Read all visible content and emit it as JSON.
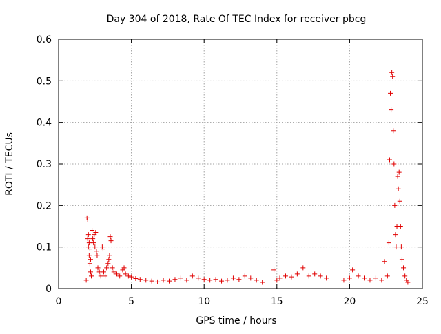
{
  "chart_data": {
    "type": "scatter",
    "title": "Day 304 of 2018, Rate Of TEC Index for receiver pbcg",
    "xlabel": "GPS time / hours",
    "ylabel": "ROTI / TECUs",
    "xlim": [
      0,
      25
    ],
    "ylim": [
      0,
      0.6
    ],
    "x_ticks": [
      0,
      5,
      10,
      15,
      20,
      25
    ],
    "y_ticks": [
      0,
      0.1,
      0.2,
      0.3,
      0.4,
      0.5,
      0.6
    ],
    "x_tick_labels": [
      "0",
      "5",
      "10",
      "15",
      "20",
      "25"
    ],
    "y_tick_labels": [
      "0",
      "0.1",
      "0.2",
      "0.3",
      "0.4",
      "0.5",
      "0.6"
    ],
    "grid": true,
    "marker": "+",
    "color": "#e00000",
    "series": [
      {
        "name": "",
        "points": [
          [
            1.9,
            0.02
          ],
          [
            1.95,
            0.17
          ],
          [
            2.0,
            0.165
          ],
          [
            2.0,
            0.12
          ],
          [
            2.05,
            0.13
          ],
          [
            2.05,
            0.1
          ],
          [
            2.1,
            0.11
          ],
          [
            2.1,
            0.08
          ],
          [
            2.15,
            0.095
          ],
          [
            2.15,
            0.06
          ],
          [
            2.2,
            0.07
          ],
          [
            2.2,
            0.04
          ],
          [
            2.25,
            0.03
          ],
          [
            2.3,
            0.14
          ],
          [
            2.35,
            0.12
          ],
          [
            2.4,
            0.11
          ],
          [
            2.45,
            0.13
          ],
          [
            2.5,
            0.1
          ],
          [
            2.55,
            0.135
          ],
          [
            2.6,
            0.09
          ],
          [
            2.65,
            0.08
          ],
          [
            2.7,
            0.05
          ],
          [
            2.8,
            0.04
          ],
          [
            2.9,
            0.03
          ],
          [
            3.0,
            0.1
          ],
          [
            3.05,
            0.095
          ],
          [
            3.1,
            0.04
          ],
          [
            3.2,
            0.03
          ],
          [
            3.3,
            0.05
          ],
          [
            3.4,
            0.06
          ],
          [
            3.45,
            0.07
          ],
          [
            3.5,
            0.08
          ],
          [
            3.55,
            0.125
          ],
          [
            3.6,
            0.115
          ],
          [
            3.7,
            0.05
          ],
          [
            3.8,
            0.04
          ],
          [
            4.0,
            0.035
          ],
          [
            4.2,
            0.03
          ],
          [
            4.4,
            0.045
          ],
          [
            4.5,
            0.05
          ],
          [
            4.6,
            0.035
          ],
          [
            4.8,
            0.03
          ],
          [
            5.0,
            0.028
          ],
          [
            5.3,
            0.024
          ],
          [
            5.6,
            0.022
          ],
          [
            6.0,
            0.02
          ],
          [
            6.4,
            0.018
          ],
          [
            6.8,
            0.016
          ],
          [
            7.2,
            0.02
          ],
          [
            7.6,
            0.018
          ],
          [
            8.0,
            0.022
          ],
          [
            8.4,
            0.025
          ],
          [
            8.8,
            0.02
          ],
          [
            9.2,
            0.03
          ],
          [
            9.6,
            0.025
          ],
          [
            10.0,
            0.022
          ],
          [
            10.4,
            0.02
          ],
          [
            10.8,
            0.022
          ],
          [
            11.2,
            0.018
          ],
          [
            11.6,
            0.02
          ],
          [
            12.0,
            0.025
          ],
          [
            12.4,
            0.022
          ],
          [
            12.8,
            0.03
          ],
          [
            13.2,
            0.025
          ],
          [
            13.6,
            0.02
          ],
          [
            14.0,
            0.015
          ],
          [
            14.8,
            0.045
          ],
          [
            15.0,
            0.02
          ],
          [
            15.2,
            0.025
          ],
          [
            15.6,
            0.03
          ],
          [
            16.0,
            0.028
          ],
          [
            16.4,
            0.035
          ],
          [
            16.8,
            0.05
          ],
          [
            17.2,
            0.03
          ],
          [
            17.6,
            0.035
          ],
          [
            18.0,
            0.03
          ],
          [
            18.4,
            0.025
          ],
          [
            19.6,
            0.02
          ],
          [
            20.0,
            0.025
          ],
          [
            20.2,
            0.045
          ],
          [
            20.6,
            0.03
          ],
          [
            21.0,
            0.025
          ],
          [
            21.4,
            0.02
          ],
          [
            21.8,
            0.025
          ],
          [
            22.2,
            0.02
          ],
          [
            22.4,
            0.065
          ],
          [
            22.6,
            0.03
          ],
          [
            22.7,
            0.11
          ],
          [
            22.75,
            0.31
          ],
          [
            22.8,
            0.47
          ],
          [
            22.85,
            0.43
          ],
          [
            22.9,
            0.52
          ],
          [
            22.95,
            0.51
          ],
          [
            23.0,
            0.38
          ],
          [
            23.05,
            0.3
          ],
          [
            23.1,
            0.2
          ],
          [
            23.15,
            0.13
          ],
          [
            23.2,
            0.1
          ],
          [
            23.25,
            0.15
          ],
          [
            23.3,
            0.27
          ],
          [
            23.35,
            0.24
          ],
          [
            23.4,
            0.28
          ],
          [
            23.45,
            0.21
          ],
          [
            23.5,
            0.15
          ],
          [
            23.55,
            0.1
          ],
          [
            23.6,
            0.07
          ],
          [
            23.7,
            0.05
          ],
          [
            23.8,
            0.03
          ],
          [
            23.9,
            0.02
          ],
          [
            24.0,
            0.015
          ]
        ]
      }
    ]
  }
}
